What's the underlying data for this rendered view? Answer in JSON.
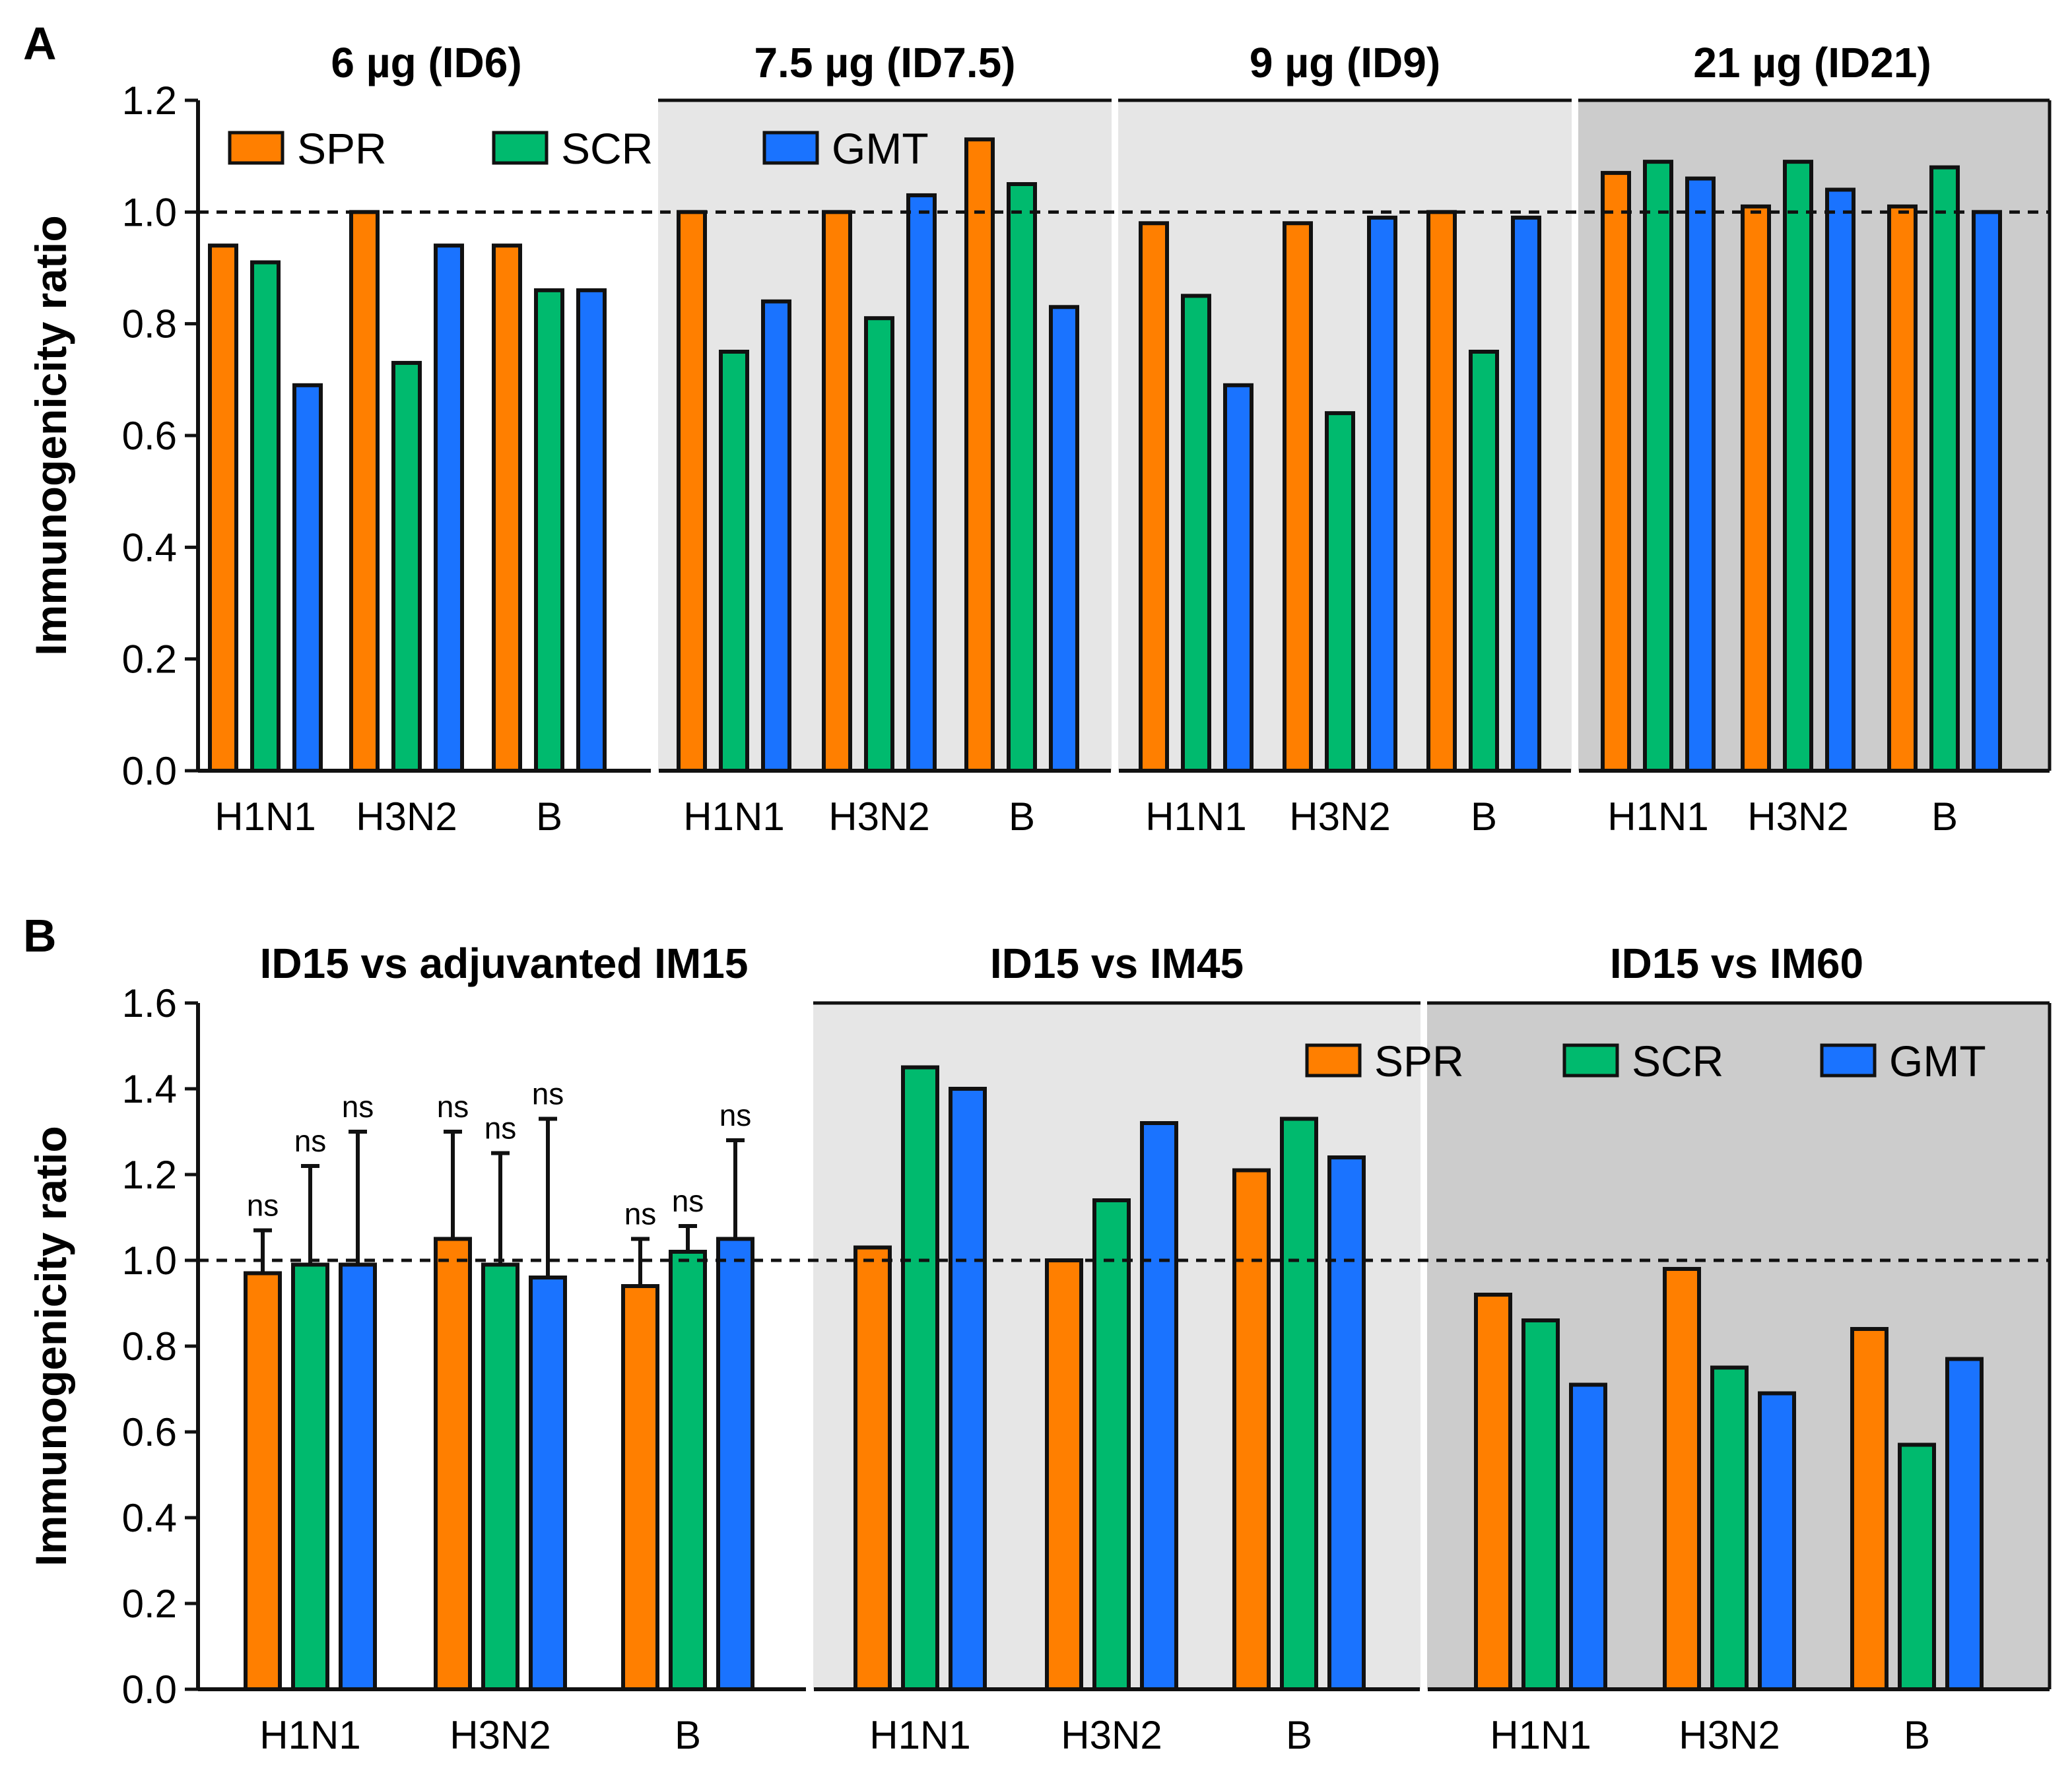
{
  "colors": {
    "SPR": "#FF7F00",
    "SCR": "#00BA6E",
    "GMT": "#1A73FF",
    "shade_light": "#E6E6E6",
    "shade_dark": "#CCCCCC"
  },
  "chart_data": [
    {
      "type": "bar",
      "panel_label": "A",
      "ylabel": "Immunogenicity ratio",
      "ylim": [
        0,
        1.2
      ],
      "yticks": [
        "0.0",
        "0.2",
        "0.4",
        "0.6",
        "0.8",
        "1.0",
        "1.2"
      ],
      "reference_line": 1.0,
      "legend": [
        "SPR",
        "SCR",
        "GMT"
      ],
      "legend_position": "top-left",
      "categories": [
        "H1N1",
        "H3N2",
        "B"
      ],
      "groups": [
        {
          "title": "6 µg (ID6)",
          "shade": "none",
          "series": [
            {
              "name": "SPR",
              "values": [
                0.94,
                1.0,
                0.94
              ]
            },
            {
              "name": "SCR",
              "values": [
                0.91,
                0.73,
                0.86
              ]
            },
            {
              "name": "GMT",
              "values": [
                0.69,
                0.94,
                0.86
              ]
            }
          ]
        },
        {
          "title": "7.5 µg (ID7.5)",
          "shade": "light",
          "series": [
            {
              "name": "SPR",
              "values": [
                1.0,
                1.0,
                1.13
              ]
            },
            {
              "name": "SCR",
              "values": [
                0.75,
                0.81,
                1.05
              ]
            },
            {
              "name": "GMT",
              "values": [
                0.84,
                1.03,
                0.83
              ]
            }
          ]
        },
        {
          "title": "9 µg (ID9)",
          "shade": "light",
          "series": [
            {
              "name": "SPR",
              "values": [
                0.98,
                0.98,
                1.0
              ]
            },
            {
              "name": "SCR",
              "values": [
                0.85,
                0.64,
                0.75
              ]
            },
            {
              "name": "GMT",
              "values": [
                0.69,
                0.99,
                0.99
              ]
            }
          ]
        },
        {
          "title": "21 µg (ID21)",
          "shade": "dark",
          "series": [
            {
              "name": "SPR",
              "values": [
                1.07,
                1.01,
                1.01
              ]
            },
            {
              "name": "SCR",
              "values": [
                1.09,
                1.09,
                1.08
              ]
            },
            {
              "name": "GMT",
              "values": [
                1.06,
                1.04,
                1.0
              ]
            }
          ]
        }
      ]
    },
    {
      "type": "bar",
      "panel_label": "B",
      "ylabel": "Immunogenicity ratio",
      "ylim": [
        0,
        1.6
      ],
      "yticks": [
        "0.0",
        "0.2",
        "0.4",
        "0.6",
        "0.8",
        "1.0",
        "1.2",
        "1.4",
        "1.6"
      ],
      "reference_line": 1.0,
      "legend": [
        "SPR",
        "SCR",
        "GMT"
      ],
      "legend_position": "top-right",
      "categories": [
        "H1N1",
        "H3N2",
        "B"
      ],
      "groups": [
        {
          "title": "ID15 vs adjuvanted IM15",
          "shade": "none",
          "series": [
            {
              "name": "SPR",
              "values": [
                0.97,
                1.05,
                0.94
              ],
              "error_upper": [
                1.07,
                1.3,
                1.05
              ],
              "significance": [
                "ns",
                "ns",
                "ns"
              ]
            },
            {
              "name": "SCR",
              "values": [
                0.99,
                0.99,
                1.02
              ],
              "error_upper": [
                1.22,
                1.25,
                1.08
              ],
              "significance": [
                "ns",
                "ns",
                "ns"
              ]
            },
            {
              "name": "GMT",
              "values": [
                0.99,
                0.96,
                1.05
              ],
              "error_upper": [
                1.3,
                1.33,
                1.28
              ],
              "significance": [
                "ns",
                "ns",
                "ns"
              ]
            }
          ]
        },
        {
          "title": "ID15 vs IM45",
          "shade": "light",
          "series": [
            {
              "name": "SPR",
              "values": [
                1.03,
                1.0,
                1.21
              ]
            },
            {
              "name": "SCR",
              "values": [
                1.45,
                1.14,
                1.33
              ]
            },
            {
              "name": "GMT",
              "values": [
                1.4,
                1.32,
                1.24
              ]
            }
          ]
        },
        {
          "title": "ID15 vs IM60",
          "shade": "dark",
          "series": [
            {
              "name": "SPR",
              "values": [
                0.92,
                0.98,
                0.84
              ]
            },
            {
              "name": "SCR",
              "values": [
                0.86,
                0.75,
                0.57
              ]
            },
            {
              "name": "GMT",
              "values": [
                0.71,
                0.69,
                0.77
              ]
            }
          ]
        }
      ]
    }
  ]
}
